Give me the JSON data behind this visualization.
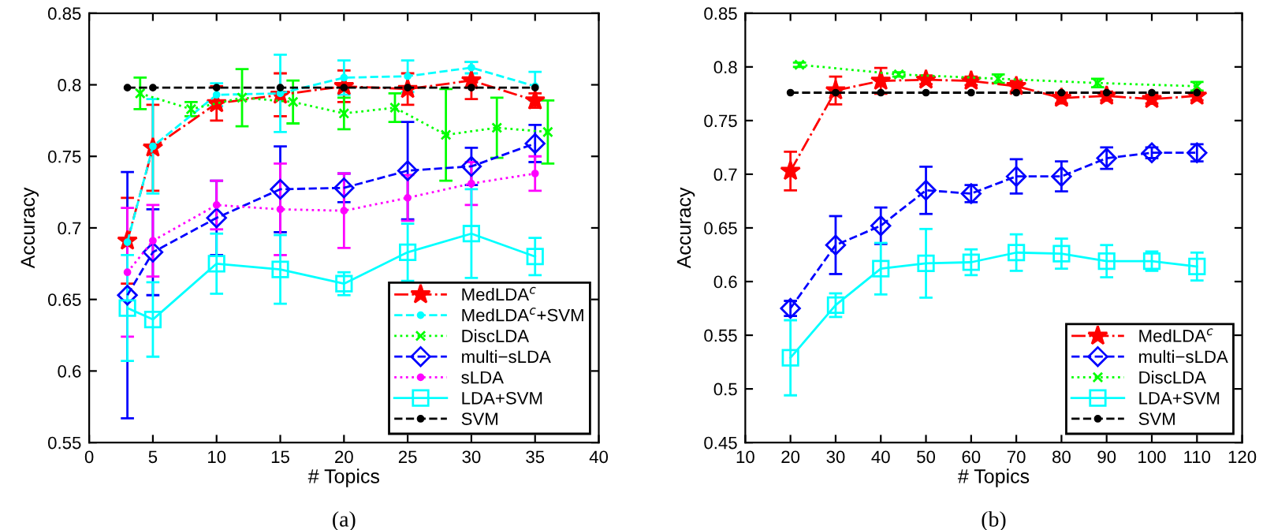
{
  "chart_data": [
    {
      "type": "line",
      "xlabel": "# Topics",
      "ylabel": "Accuracy",
      "xlim": [
        0,
        40
      ],
      "ylim": [
        0.55,
        0.85
      ],
      "xticks": [
        0,
        5,
        10,
        15,
        20,
        25,
        30,
        35,
        40
      ],
      "yticks": [
        0.55,
        0.6,
        0.65,
        0.7,
        0.75,
        0.8,
        0.85
      ],
      "grid": false,
      "legend": "bottom right",
      "annotations": [
        "(a)"
      ],
      "series": [
        {
          "name": "MedLDA$^{c}$",
          "color": "#ff0000",
          "marker": "star",
          "line_style": "dashdot",
          "x": [
            3,
            5,
            10,
            15,
            20,
            25,
            30,
            35
          ],
          "values": [
            0.691,
            0.756,
            0.787,
            0.793,
            0.799,
            0.797,
            0.803,
            0.789
          ],
          "errors": [
            0.03,
            0.03,
            0.012,
            0.015,
            0.011,
            0.011,
            0.013,
            0.005
          ]
        },
        {
          "name": "MedLDA$^{c}$+SVM",
          "color": "#00ffff",
          "marker": "circle",
          "line_style": "dashed",
          "x": [
            3,
            5,
            10,
            15,
            20,
            25,
            30,
            35
          ],
          "values": [
            0.69,
            0.757,
            0.793,
            0.794,
            0.805,
            0.806,
            0.812,
            0.799
          ],
          "errors": [
            null,
            0.033,
            0.008,
            0.027,
            0.012,
            0.011,
            0.004,
            0.01
          ]
        },
        {
          "name": "DiscLDA",
          "color": "#00ff00",
          "marker": "cross",
          "line_style": "dotted",
          "x": [
            4,
            8,
            12,
            16,
            20,
            24,
            28,
            32,
            36
          ],
          "values": [
            0.794,
            0.783,
            0.791,
            0.788,
            0.78,
            0.784,
            0.765,
            0.77,
            0.767
          ],
          "errors": [
            0.011,
            0.005,
            0.02,
            0.015,
            0.011,
            0.01,
            0.032,
            0.021,
            0.022
          ]
        },
        {
          "name": "multi−sLDA",
          "color": "#0000ff",
          "marker": "diamond",
          "line_style": "dashed",
          "x": [
            3,
            5,
            10,
            15,
            20,
            25,
            30,
            35
          ],
          "values": [
            0.653,
            0.683,
            0.707,
            0.727,
            0.728,
            0.74,
            0.743,
            0.759
          ],
          "errors": [
            0.086,
            0.03,
            0.026,
            0.03,
            0.01,
            0.034,
            0.013,
            0.013
          ]
        },
        {
          "name": "sLDA",
          "color": "#ff00ff",
          "marker": "circle",
          "line_style": "dotted",
          "x": [
            3,
            5,
            10,
            15,
            20,
            25,
            30,
            35
          ],
          "values": [
            0.669,
            0.691,
            0.716,
            0.713,
            0.712,
            0.721,
            0.731,
            0.738
          ],
          "errors": [
            0.045,
            0.025,
            0.017,
            0.032,
            0.026,
            0.016,
            0.015,
            0.012
          ]
        },
        {
          "name": "LDA+SVM",
          "color": "#00ffff",
          "marker": "square",
          "line_style": "solid",
          "x": [
            3,
            5,
            10,
            15,
            20,
            25,
            30,
            35
          ],
          "values": [
            0.644,
            0.636,
            0.675,
            0.671,
            0.661,
            0.683,
            0.696,
            0.68
          ],
          "errors": [
            0.037,
            0.026,
            0.021,
            0.024,
            0.008,
            0.02,
            0.031,
            0.013
          ]
        },
        {
          "name": "SVM",
          "color": "#000000",
          "marker": "circle",
          "line_style": "dashed",
          "x": [
            3,
            5,
            10,
            15,
            20,
            25,
            30,
            35
          ],
          "values": [
            0.798,
            0.798,
            0.798,
            0.798,
            0.798,
            0.798,
            0.798,
            0.798
          ]
        }
      ]
    },
    {
      "type": "line",
      "xlabel": "# Topics",
      "ylabel": "Accuracy",
      "xlim": [
        10,
        120
      ],
      "ylim": [
        0.45,
        0.85
      ],
      "xticks": [
        10,
        20,
        30,
        40,
        50,
        60,
        70,
        80,
        90,
        100,
        110,
        120
      ],
      "yticks": [
        0.45,
        0.5,
        0.55,
        0.6,
        0.65,
        0.7,
        0.75,
        0.8,
        0.85
      ],
      "grid": false,
      "legend": "bottom right",
      "annotations": [
        "(b)"
      ],
      "series": [
        {
          "name": "MedLDA$^{c}$",
          "color": "#ff0000",
          "marker": "star",
          "line_style": "dashdot",
          "x": [
            20,
            30,
            40,
            50,
            60,
            70,
            80,
            90,
            100,
            110
          ],
          "values": [
            0.703,
            0.778,
            0.787,
            0.788,
            0.787,
            0.782,
            0.771,
            0.773,
            0.77,
            0.773
          ],
          "errors": [
            0.018,
            0.013,
            0.012,
            0.004,
            0.004,
            0.005,
            0.005,
            0.004,
            0.004,
            0.004
          ]
        },
        {
          "name": "multi−sLDA",
          "color": "#0000ff",
          "marker": "diamond",
          "line_style": "dashed",
          "x": [
            20,
            30,
            40,
            50,
            60,
            70,
            80,
            90,
            100,
            110
          ],
          "values": [
            0.575,
            0.634,
            0.652,
            0.685,
            0.682,
            0.698,
            0.698,
            0.715,
            0.72,
            0.72
          ],
          "errors": [
            0.007,
            0.027,
            0.017,
            0.022,
            0.008,
            0.016,
            0.014,
            0.01,
            0.005,
            0.008
          ]
        },
        {
          "name": "DiscLDA",
          "color": "#00ff00",
          "marker": "cross",
          "line_style": "dotted",
          "x": [
            22,
            44,
            66,
            88,
            110
          ],
          "values": [
            0.802,
            0.793,
            0.789,
            0.785,
            0.782
          ],
          "errors": [
            0.002,
            0.002,
            0.004,
            0.004,
            0.004
          ]
        },
        {
          "name": "LDA+SVM",
          "color": "#00ffff",
          "marker": "square",
          "line_style": "solid",
          "x": [
            20,
            30,
            40,
            50,
            60,
            70,
            80,
            90,
            100,
            110
          ],
          "values": [
            0.529,
            0.578,
            0.612,
            0.617,
            0.618,
            0.627,
            0.626,
            0.619,
            0.619,
            0.614
          ],
          "errors": [
            0.035,
            0.011,
            0.024,
            0.032,
            0.012,
            0.017,
            0.014,
            0.015,
            0.009,
            0.013
          ]
        },
        {
          "name": "SVM",
          "color": "#000000",
          "marker": "circle",
          "line_style": "dashed",
          "x": [
            20,
            30,
            40,
            50,
            60,
            70,
            80,
            90,
            100,
            110
          ],
          "values": [
            0.776,
            0.776,
            0.776,
            0.776,
            0.776,
            0.776,
            0.776,
            0.776,
            0.776,
            0.776
          ]
        }
      ]
    }
  ]
}
